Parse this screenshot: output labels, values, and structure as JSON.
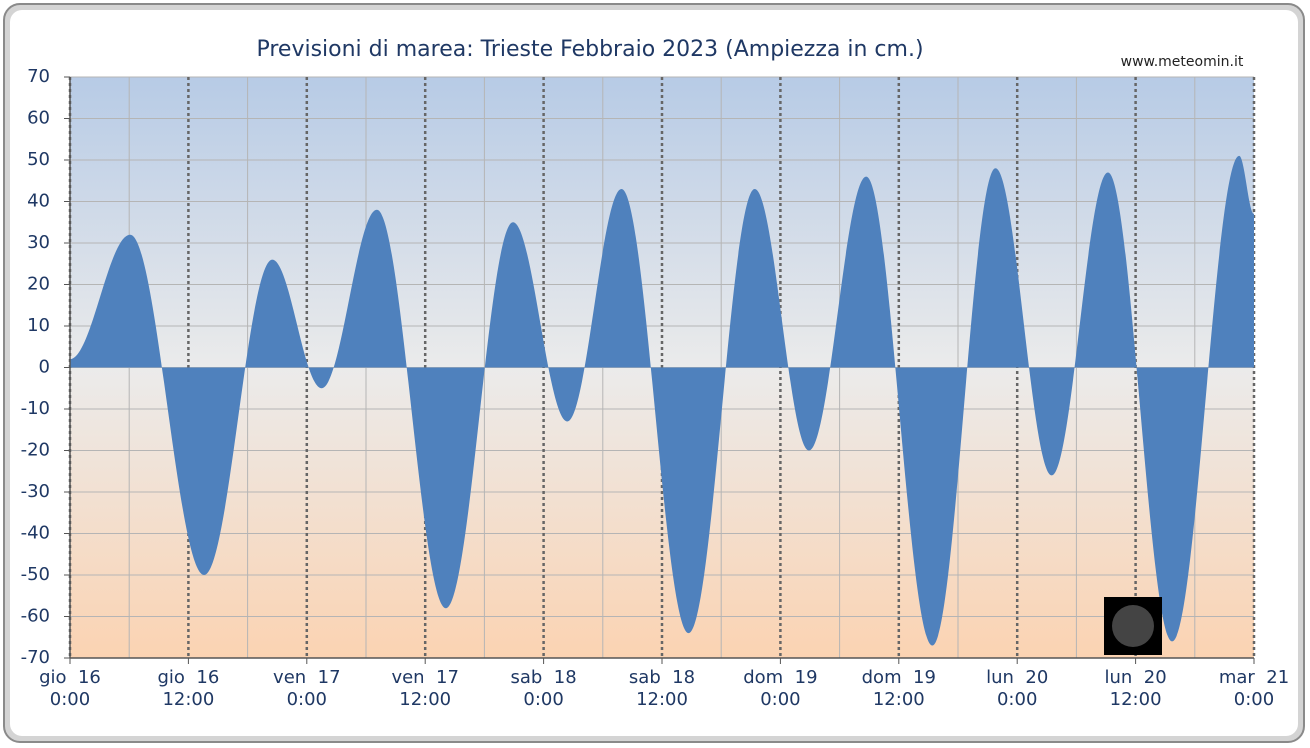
{
  "chart_data": {
    "type": "area",
    "title": "Previsioni di marea: Trieste Febbraio 2023 (Ampiezza in cm.)",
    "source": "www.meteomin.it",
    "x": [
      0,
      6.1,
      13.6,
      20.5,
      25.5,
      31.1,
      38.1,
      44.9,
      50.4,
      55.9,
      62.7,
      69.4,
      74.9,
      80.7,
      87.4,
      93.8,
      99.5,
      105.2,
      111.7,
      118.5,
      120
    ],
    "values": [
      2,
      32,
      -50,
      26,
      -5,
      38,
      -58,
      35,
      -13,
      43,
      -64,
      43,
      -20,
      46,
      -67,
      48,
      -26,
      47,
      -66,
      51,
      37
    ],
    "color": "#4f81bd",
    "ylim": [
      -70,
      70
    ],
    "yticks": [
      -70,
      -60,
      -50,
      -40,
      -30,
      -20,
      -10,
      0,
      10,
      20,
      30,
      40,
      50,
      60,
      70
    ],
    "xlim": [
      0,
      120
    ],
    "xticks": [
      {
        "value": 0,
        "label": "gio  16\n0:00"
      },
      {
        "value": 12,
        "label": "gio  16\n12:00"
      },
      {
        "value": 24,
        "label": "ven  17\n0:00"
      },
      {
        "value": 36,
        "label": "ven  17\n12:00"
      },
      {
        "value": 48,
        "label": "sab  18\n0:00"
      },
      {
        "value": 60,
        "label": "sab  18\n12:00"
      },
      {
        "value": 72,
        "label": "dom  19\n0:00"
      },
      {
        "value": 84,
        "label": "dom  19\n12:00"
      },
      {
        "value": 96,
        "label": "lun  20\n0:00"
      },
      {
        "value": 108,
        "label": "lun  20\n12:00"
      },
      {
        "value": 120,
        "label": "mar  21\n0:00"
      }
    ],
    "x_minor_grid": [
      6,
      18,
      30,
      42,
      54,
      66,
      78,
      90,
      102,
      114
    ],
    "grid": true
  }
}
